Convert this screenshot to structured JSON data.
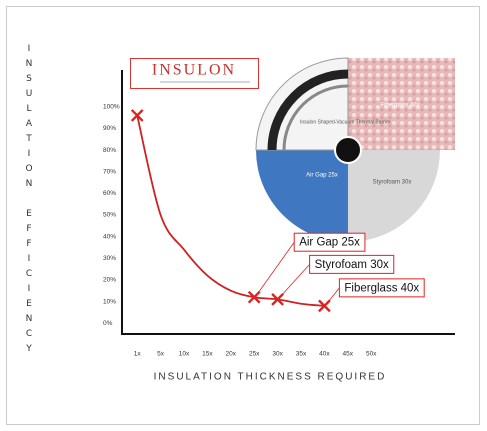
{
  "chart_data": {
    "type": "line",
    "logo": "INSULON",
    "y_label": "INSULATION EFFICIENCY",
    "x_label": "INSULATION THICKNESS REQUIRED",
    "graphic_labels": [
      "Insulon Shaped-Vacuum Thermal Barrier",
      "Fiberglass 40x",
      "Air Gap 25x",
      "Styrofoam 30x"
    ],
    "categories": [
      "1x",
      "5x",
      "10x",
      "15x",
      "20x",
      "25x",
      "30x",
      "35x",
      "40x",
      "45x",
      "50x"
    ],
    "series": [
      {
        "color": "#cc2222",
        "values": [
          96,
          50,
          34,
          22,
          15,
          12,
          11,
          9,
          8,
          null,
          null
        ]
      },
      {
        "color": "#dd2222",
        "values": [
          96,
          null,
          null,
          null,
          null,
          12,
          11,
          null,
          8,
          null,
          null
        ],
        "point_labels": [
          null,
          null,
          null,
          null,
          null,
          "Air Gap 25x",
          "Styrofoam 30x",
          null,
          "Fiberglass 40x",
          null,
          null
        ]
      }
    ],
    "ylim": [
      -5,
      117
    ],
    "yticks": [
      {
        "value": 0,
        "label": "0%"
      },
      {
        "value": 10,
        "label": "10%"
      },
      {
        "value": 20,
        "label": "20%"
      },
      {
        "value": 30,
        "label": "30%"
      },
      {
        "value": 40,
        "label": "40%"
      },
      {
        "value": 50,
        "label": "50%"
      },
      {
        "value": 60,
        "label": "60%"
      },
      {
        "value": 70,
        "label": "70%"
      },
      {
        "value": 80,
        "label": "80%"
      },
      {
        "value": 90,
        "label": "90%"
      },
      {
        "value": 100,
        "label": "100%"
      }
    ]
  }
}
